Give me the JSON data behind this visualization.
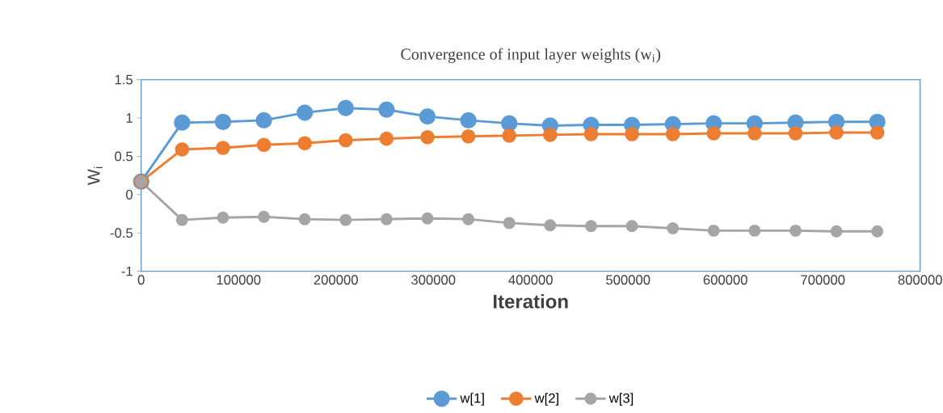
{
  "chart_data": {
    "type": "line",
    "title": "Convergence of input layer weights (w$_{i}$)",
    "xlabel": "Iteration",
    "ylabel": "W$_{i}$",
    "x": [
      0,
      42000,
      84000,
      126000,
      168000,
      210000,
      252000,
      294000,
      336000,
      378000,
      420000,
      462000,
      504000,
      546000,
      588000,
      630000,
      672000,
      714000,
      756000
    ],
    "series": [
      {
        "name": "w[1]",
        "color": "#5b9bd5",
        "values": [
          0.17,
          0.94,
          0.95,
          0.97,
          1.07,
          1.13,
          1.11,
          1.02,
          0.97,
          0.93,
          0.9,
          0.91,
          0.91,
          0.92,
          0.93,
          0.93,
          0.94,
          0.95,
          0.95
        ]
      },
      {
        "name": "w[2]",
        "color": "#ed7d31",
        "values": [
          0.17,
          0.59,
          0.61,
          0.65,
          0.67,
          0.71,
          0.73,
          0.75,
          0.76,
          0.77,
          0.78,
          0.79,
          0.79,
          0.79,
          0.8,
          0.8,
          0.8,
          0.81,
          0.81
        ]
      },
      {
        "name": "w[3]",
        "color": "#a5a5a5",
        "values": [
          0.17,
          -0.33,
          -0.3,
          -0.29,
          -0.32,
          -0.33,
          -0.32,
          -0.31,
          -0.32,
          -0.37,
          -0.4,
          -0.41,
          -0.41,
          -0.44,
          -0.47,
          -0.47,
          -0.47,
          -0.48,
          -0.48
        ]
      }
    ],
    "xlim": [
      0,
      800000
    ],
    "xticks": [
      0,
      100000,
      200000,
      300000,
      400000,
      500000,
      600000,
      700000,
      800000
    ],
    "ylim": [
      -1,
      1.5
    ],
    "yticks": [
      -1,
      -0.5,
      0,
      0.5,
      1,
      1.5
    ],
    "grid": false,
    "legend": "bottom",
    "marker": "circle",
    "line_style": "solid"
  }
}
